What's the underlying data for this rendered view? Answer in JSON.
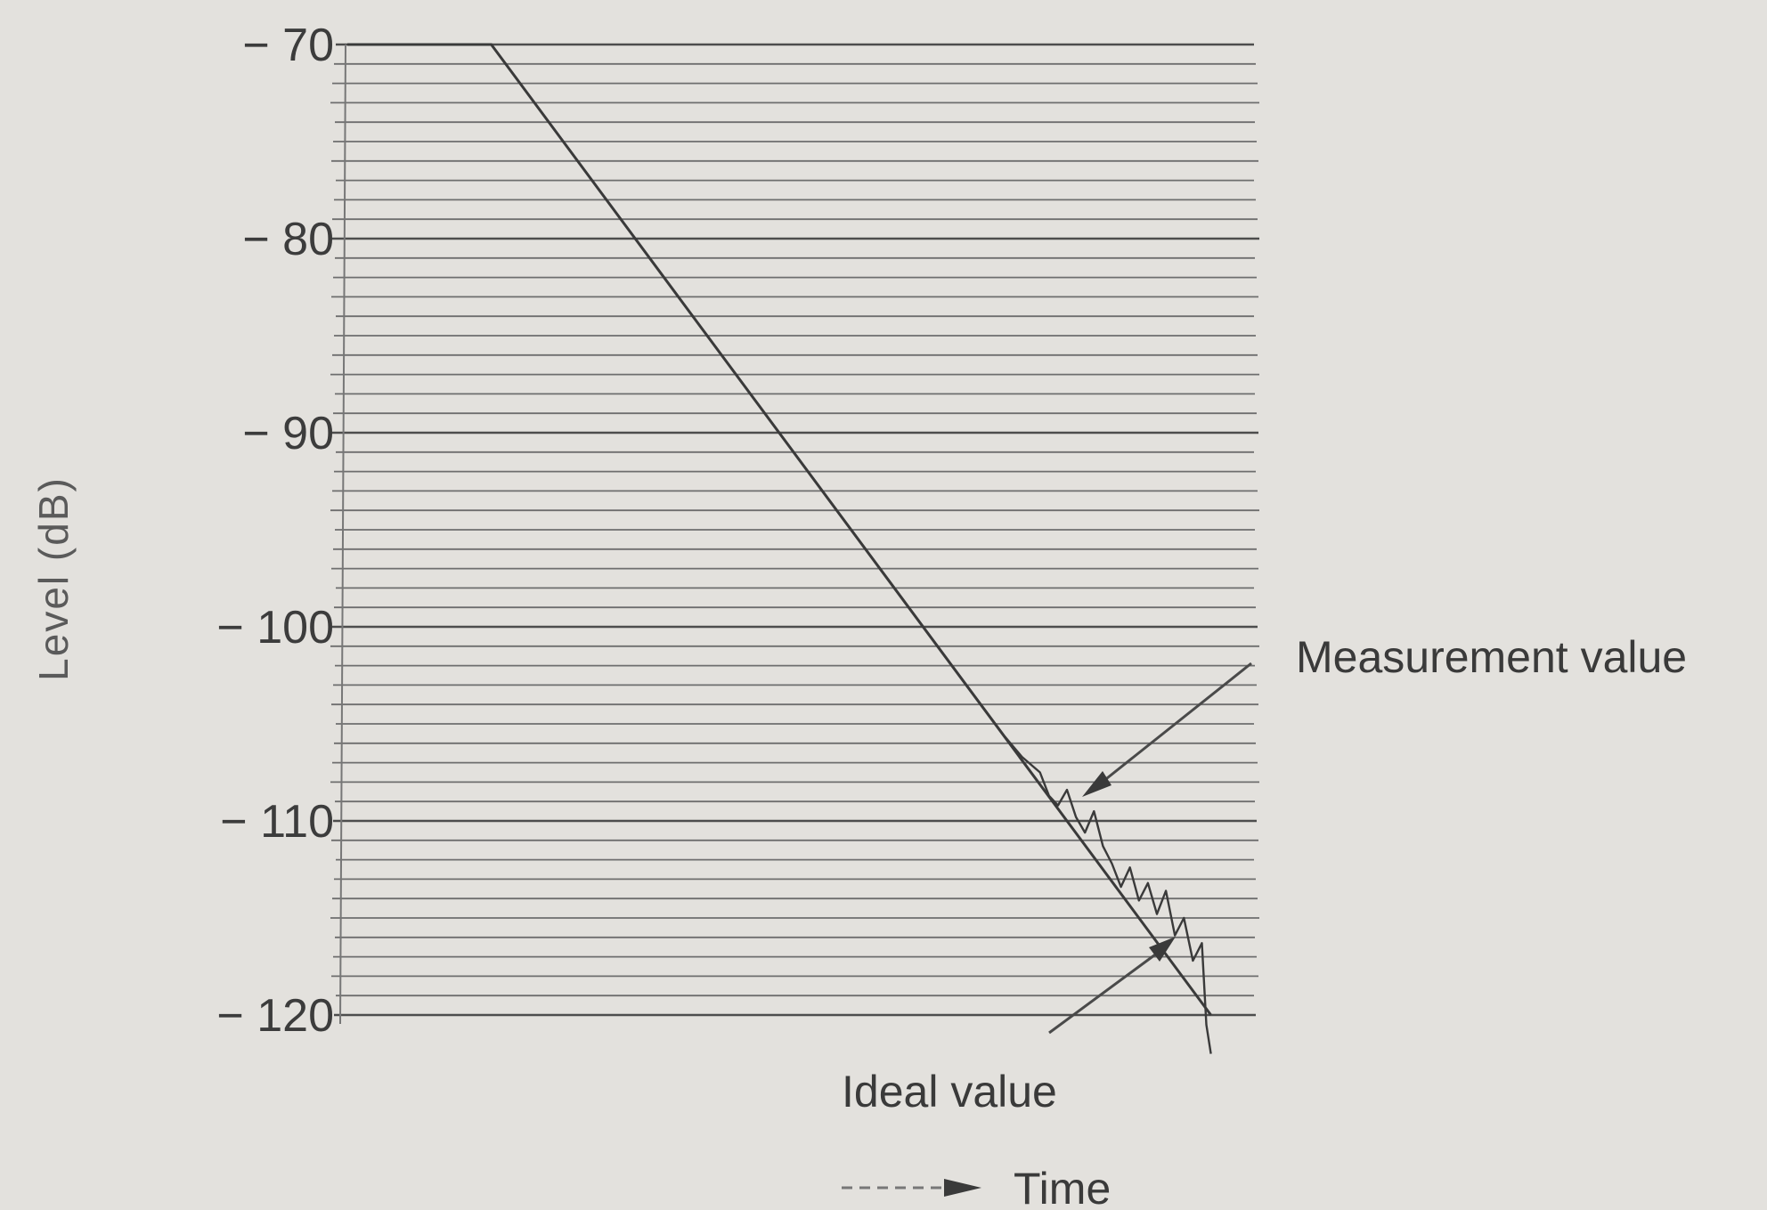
{
  "chart_data": {
    "type": "line",
    "title": "",
    "xlabel": "Time",
    "ylabel": "Level (dB)",
    "ylim": [
      -120,
      -70
    ],
    "yticks": [
      -70,
      -80,
      -90,
      -100,
      -110,
      -120
    ],
    "ytick_labels": [
      "− 70",
      "− 80",
      "− 90",
      "− 100",
      "− 110",
      "− 120"
    ],
    "grid": "dense horizontal lines",
    "x_units": "relative time (0–100)",
    "series": [
      {
        "name": "Ideal value",
        "x": [
          0,
          16,
          96
        ],
        "y": [
          -70,
          -70,
          -120
        ]
      },
      {
        "name": "Measurement value",
        "x": [
          0,
          16,
          73,
          75,
          77,
          78,
          79,
          80,
          81,
          82,
          83,
          84,
          85,
          86,
          87,
          88,
          89,
          90,
          91,
          92,
          93,
          94,
          95,
          95.5,
          96
        ],
        "y": [
          -70,
          -70,
          -105.6,
          -106.7,
          -107.5,
          -108.7,
          -109.2,
          -108.4,
          -109.8,
          -110.6,
          -109.5,
          -111.3,
          -112.2,
          -113.4,
          -112.4,
          -114.1,
          -113.2,
          -114.8,
          -113.6,
          -115.9,
          -115.0,
          -117.2,
          -116.3,
          -120.5,
          -122.0
        ]
      }
    ],
    "annotations": {
      "measurement": "Measurement value",
      "ideal": "Ideal value"
    }
  }
}
